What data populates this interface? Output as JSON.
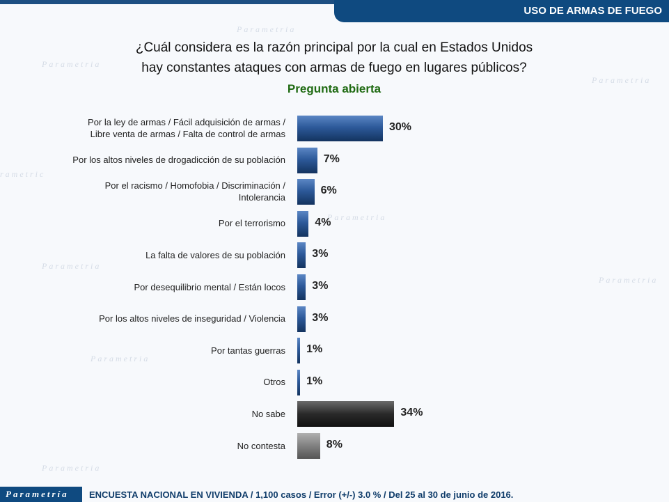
{
  "header": {
    "section_title": "USO DE ARMAS DE FUEGO"
  },
  "chart_data": {
    "type": "bar",
    "orientation": "horizontal",
    "title_line1": "¿Cuál considera es la razón principal por la cual en Estados Unidos",
    "title_line2": "hay constantes ataques con armas de fuego en lugares públicos?",
    "subtitle": "Pregunta abierta",
    "categories": [
      [
        "Por la ley de armas / Fácil adquisición de armas /",
        "Libre venta de armas / Falta de control de armas"
      ],
      [
        "Por los altos niveles de drogadicción de su población"
      ],
      [
        "Por el racismo / Homofobia / Discriminación /",
        "Intolerancia"
      ],
      [
        "Por el terrorismo"
      ],
      [
        "La falta de valores de su población"
      ],
      [
        "Por desequilibrio mental / Están locos"
      ],
      [
        "Por los altos niveles de inseguridad / Violencia"
      ],
      [
        "Por tantas guerras"
      ],
      [
        "Otros"
      ],
      [
        "No sabe"
      ],
      [
        "No contesta"
      ]
    ],
    "values": [
      30,
      7,
      6,
      4,
      3,
      3,
      3,
      1,
      1,
      34,
      8
    ],
    "value_labels": [
      "30%",
      "7%",
      "6%",
      "4%",
      "3%",
      "3%",
      "3%",
      "1%",
      "1%",
      "34%",
      "8%"
    ],
    "bar_styles": [
      "blue",
      "blue",
      "blue",
      "blue",
      "blue",
      "blue",
      "blue",
      "blue",
      "blue",
      "black",
      "gray"
    ],
    "xlim": [
      0,
      100
    ],
    "colors": {
      "blue": "#2d5a9a",
      "black": "#2a2a2a",
      "gray": "#808080"
    }
  },
  "footer": {
    "logo": "Parametría",
    "text": "ENCUESTA NACIONAL EN VIVIENDA / 1,100 casos / Error (+/-) 3.0 % / Del 25 al 30 de junio de 2016."
  }
}
